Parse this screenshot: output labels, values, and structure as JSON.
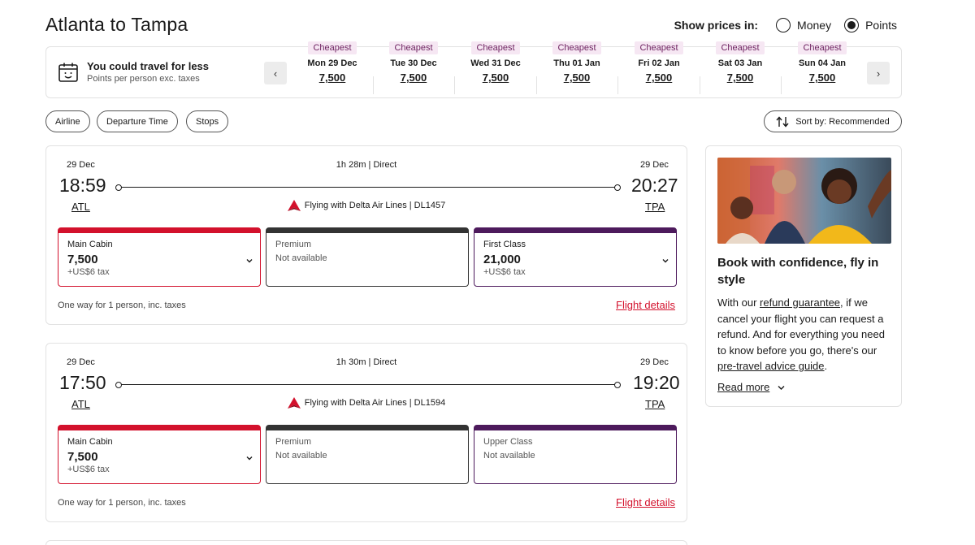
{
  "title": "Atlanta to Tampa",
  "price_toggle": {
    "label": "Show prices in:",
    "options": [
      "Money",
      "Points"
    ],
    "selected": "Points"
  },
  "date_strip": {
    "headline": "You could travel for less",
    "subline": "Points per person exc. taxes",
    "dates": [
      {
        "badge": "Cheapest",
        "day": "Mon 29 Dec",
        "points": "7,500"
      },
      {
        "badge": "Cheapest",
        "day": "Tue 30 Dec",
        "points": "7,500"
      },
      {
        "badge": "Cheapest",
        "day": "Wed 31 Dec",
        "points": "7,500"
      },
      {
        "badge": "Cheapest",
        "day": "Thu 01 Jan",
        "points": "7,500"
      },
      {
        "badge": "Cheapest",
        "day": "Fri 02 Jan",
        "points": "7,500"
      },
      {
        "badge": "Cheapest",
        "day": "Sat 03 Jan",
        "points": "7,500"
      },
      {
        "badge": "Cheapest",
        "day": "Sun 04 Jan",
        "points": "7,500"
      }
    ]
  },
  "filters": [
    "Airline",
    "Departure Time",
    "Stops"
  ],
  "sort": {
    "label": "Sort by: Recommended"
  },
  "flights": [
    {
      "dep_date": "29 Dec",
      "dep_time": "18:59",
      "dep_code": "ATL",
      "arr_date": "29 Dec",
      "arr_time": "20:27",
      "arr_code": "TPA",
      "duration": "1h 28m  |  Direct",
      "operator": "Flying with Delta Air Lines | DL1457",
      "cabins": [
        {
          "name": "Main Cabin",
          "price": "7,500",
          "tax": "+US$6 tax",
          "na": ""
        },
        {
          "name": "Premium",
          "price": "",
          "tax": "",
          "na": "Not available"
        },
        {
          "name": "First Class",
          "price": "21,000",
          "tax": "+US$6 tax",
          "na": ""
        }
      ],
      "note": "One way for 1 person, inc. taxes",
      "details": "Flight details"
    },
    {
      "dep_date": "29 Dec",
      "dep_time": "17:50",
      "dep_code": "ATL",
      "arr_date": "29 Dec",
      "arr_time": "19:20",
      "arr_code": "TPA",
      "duration": "1h 30m  |  Direct",
      "operator": "Flying with Delta Air Lines | DL1594",
      "cabins": [
        {
          "name": "Main Cabin",
          "price": "7,500",
          "tax": "+US$6 tax",
          "na": ""
        },
        {
          "name": "Premium",
          "price": "",
          "tax": "",
          "na": "Not available"
        },
        {
          "name": "Upper Class",
          "price": "",
          "tax": "",
          "na": "Not available"
        }
      ],
      "note": "One way for 1 person, inc. taxes",
      "details": "Flight details"
    }
  ],
  "promo": {
    "heading": "Book with confidence, fly in style",
    "p1": "With our ",
    "link1": "refund guarantee",
    "p2": ", if we cancel your flight you can request a refund. And for everything you need to know before you go, there's our ",
    "link2": "pre-travel advice guide",
    "p3": ".",
    "read_more": "Read more"
  },
  "colors": {
    "accent_red": "#d3112c",
    "badge_bg": "#f6e7f3",
    "upper_purple": "#4d1a5c",
    "premium_black": "#0f1621"
  }
}
